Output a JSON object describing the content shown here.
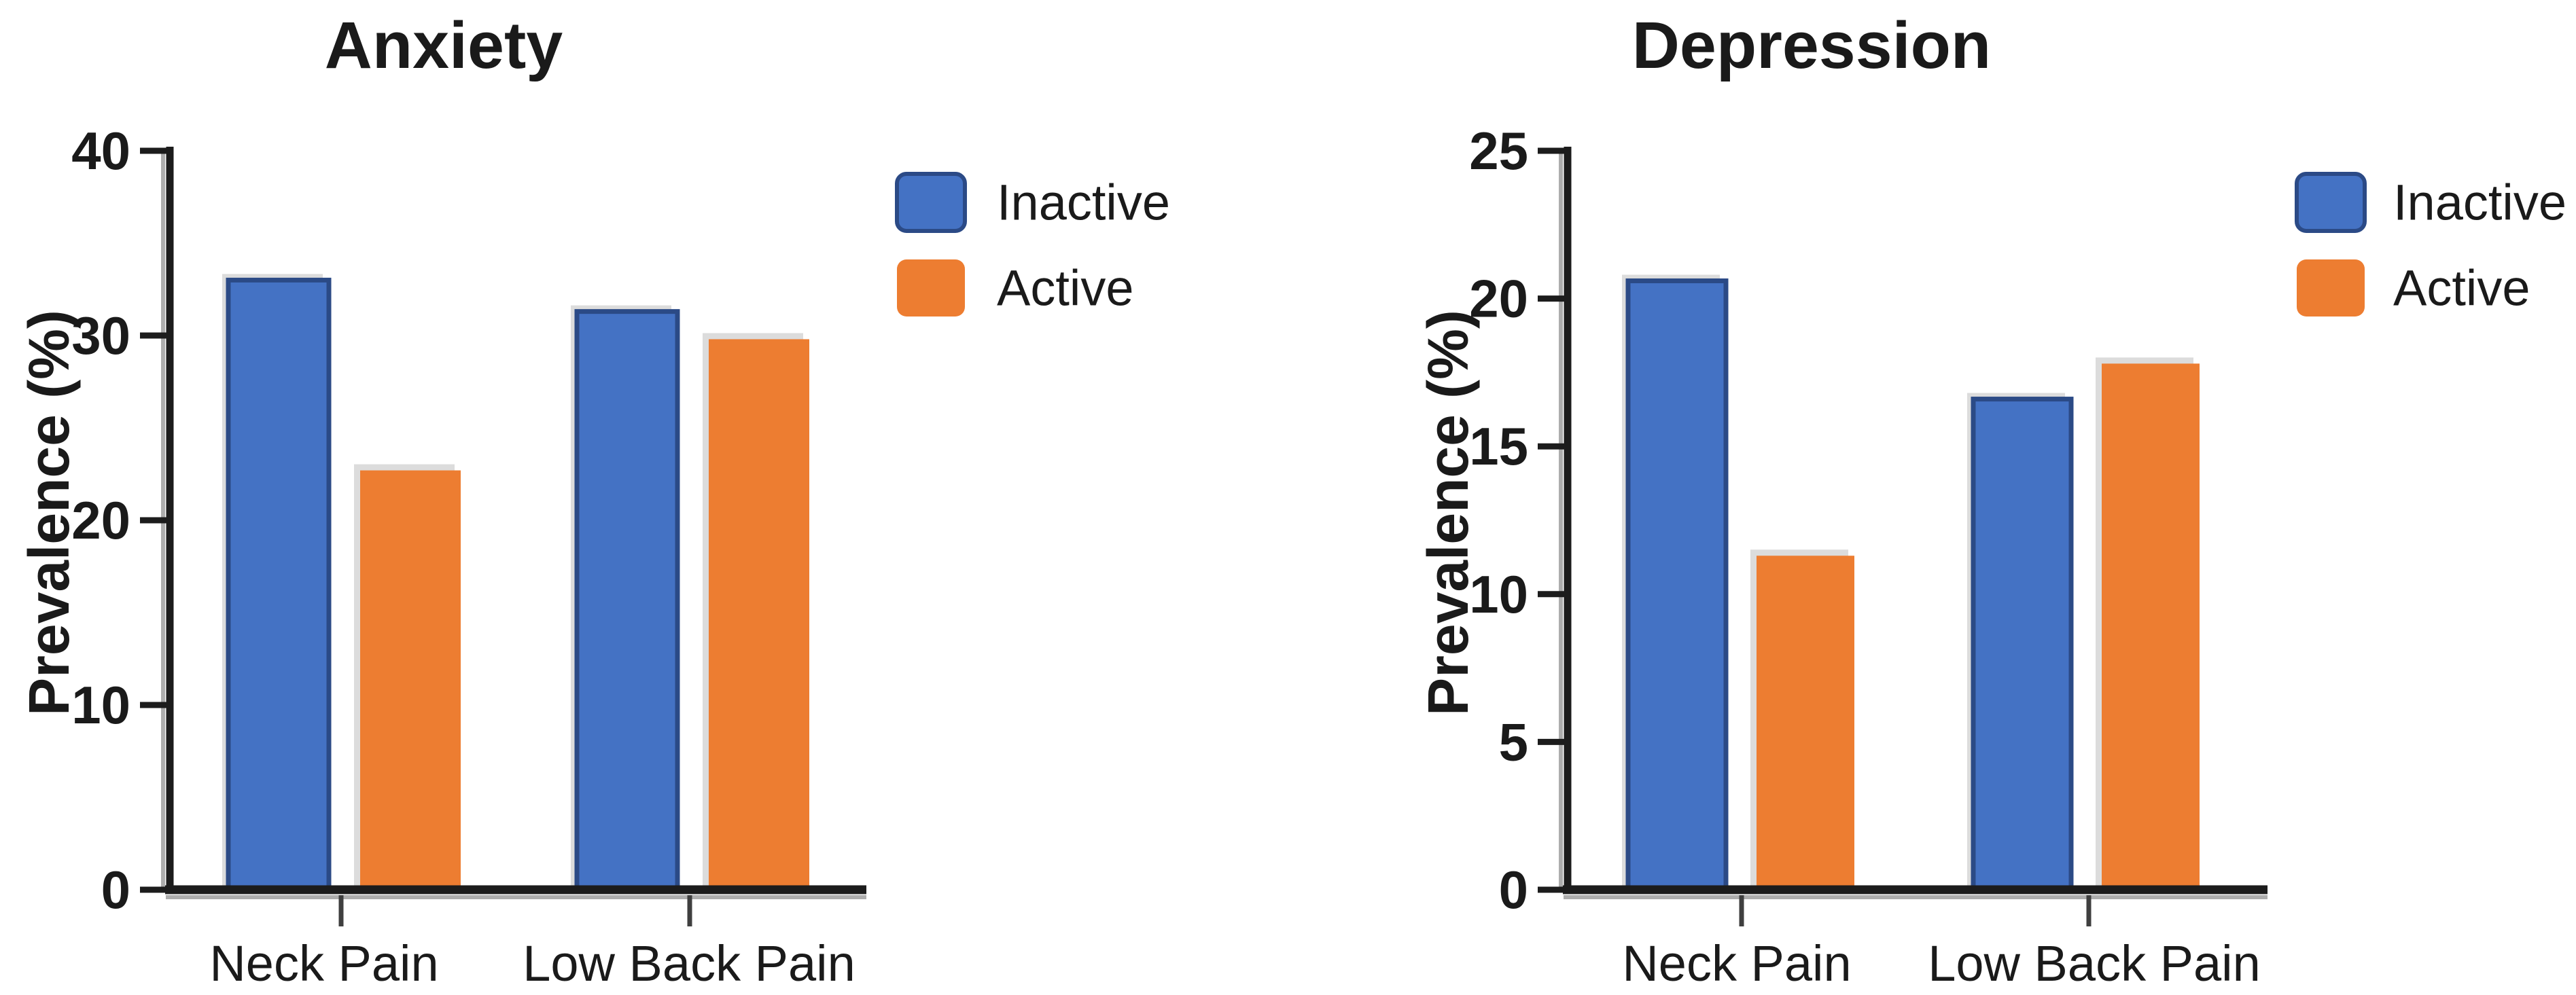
{
  "chart_data": [
    {
      "type": "bar",
      "title": "Anxiety",
      "ylabel": "Prevalence (%)",
      "xlabel": "",
      "categories": [
        "Neck Pain",
        "Low Back Pain"
      ],
      "series": [
        {
          "name": "Inactive",
          "color": "#4472C4",
          "values": [
            33.0,
            31.3
          ]
        },
        {
          "name": "Active",
          "color": "#ED7D31",
          "values": [
            22.7,
            29.8
          ]
        }
      ],
      "ylim": [
        0,
        40
      ],
      "yticks": [
        0,
        10,
        20,
        30,
        40
      ],
      "grid": false,
      "legend_position": "right"
    },
    {
      "type": "bar",
      "title": "Depression",
      "ylabel": "Prevalence (%)",
      "xlabel": "",
      "categories": [
        "Neck Pain",
        "Low Back Pain"
      ],
      "series": [
        {
          "name": "Inactive",
          "color": "#4472C4",
          "values": [
            20.6,
            16.6
          ]
        },
        {
          "name": "Active",
          "color": "#ED7D31",
          "values": [
            11.3,
            17.8
          ]
        }
      ],
      "ylim": [
        0,
        25
      ],
      "yticks": [
        0,
        5,
        10,
        15,
        20,
        25
      ],
      "grid": false,
      "legend_position": "right"
    }
  ],
  "legend": {
    "items": [
      {
        "label": "Inactive",
        "color": "#4472C4"
      },
      {
        "label": "Active",
        "color": "#ED7D31"
      }
    ]
  },
  "colors": {
    "inactive_fill": "#4472C4",
    "inactive_border": "#2B4A86",
    "active_fill": "#ED7D31",
    "bar_shadow": "#B9B9B9",
    "axis": "#1C1C1C",
    "axis_shadow": "#ADADAD",
    "x_tick": "#3F3F3F",
    "text": "#1A1A1A",
    "background": "#FFFFFF"
  }
}
